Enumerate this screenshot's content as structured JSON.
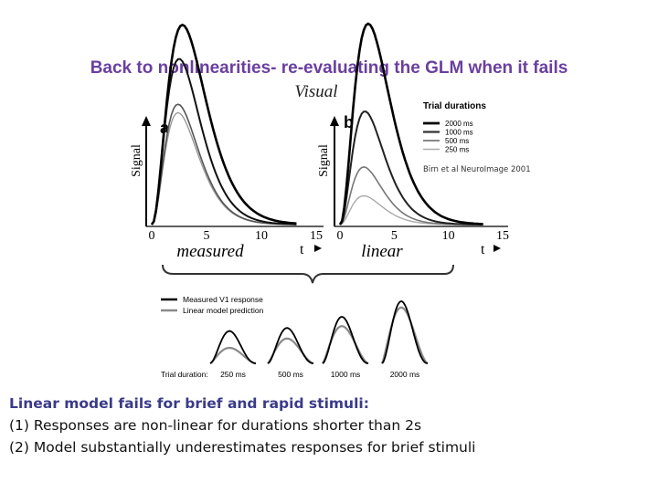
{
  "colors": {
    "title": "#6a3fa0",
    "emphasis": "#3a3a8a",
    "curve_dark": "#000000",
    "curve_gray": "#8a8a8a"
  },
  "slide": {
    "title": "Back to nonlinearities- re-evaluating the GLM when it fails",
    "figure_label": "Visual",
    "citation": "Birn et al NeuroImage 2001",
    "body_lines": [
      "Linear model fails for brief and rapid stimuli:",
      "(1) Responses are non-linear for durations shorter than 2s",
      "(2) Model substantially underestimates responses for brief stimuli"
    ]
  },
  "chart_data": [
    {
      "type": "line",
      "panel": "a",
      "subtitle": "measured",
      "ylabel": "Signal",
      "xlabel": "t",
      "xticks": [
        0,
        5,
        10,
        15
      ],
      "xlim": [
        0,
        15
      ],
      "ylim": [
        0,
        1
      ],
      "series": [
        {
          "name": "2000 ms",
          "color": "#000000",
          "width": 2.6,
          "peak": 0.96,
          "tpeak": 5.8,
          "w": 2.8
        },
        {
          "name": "1000 ms",
          "color": "#111111",
          "width": 2.0,
          "peak": 0.75,
          "tpeak": 5.3,
          "w": 2.5
        },
        {
          "name": "500 ms",
          "color": "#555555",
          "width": 1.6,
          "peak": 0.57,
          "tpeak": 5.0,
          "w": 2.4
        },
        {
          "name": "250 ms",
          "color": "#999999",
          "width": 1.4,
          "peak": 0.53,
          "tpeak": 5.0,
          "w": 2.4
        }
      ]
    },
    {
      "type": "line",
      "panel": "b",
      "subtitle": "linear",
      "ylabel": "Signal",
      "xlabel": "t",
      "xticks": [
        0,
        5,
        10,
        15
      ],
      "xlim": [
        0,
        15
      ],
      "ylim": [
        0,
        1
      ],
      "legend_title": "Trial durations",
      "legend_position": "top-right",
      "series": [
        {
          "name": "2000 ms",
          "color": "#000000",
          "width": 2.6,
          "peak": 0.96,
          "tpeak": 5.8,
          "w": 2.6
        },
        {
          "name": "1000 ms",
          "color": "#222222",
          "width": 2.0,
          "peak": 0.52,
          "tpeak": 5.2,
          "w": 2.3
        },
        {
          "name": "500 ms",
          "color": "#777777",
          "width": 1.6,
          "peak": 0.26,
          "tpeak": 5.0,
          "w": 2.2
        },
        {
          "name": "250 ms",
          "color": "#aaaaaa",
          "width": 1.4,
          "peak": 0.13,
          "tpeak": 5.0,
          "w": 2.2
        }
      ]
    },
    {
      "type": "line",
      "panel": "inset",
      "legend": [
        "Measured V1 response",
        "Linear model prediction"
      ],
      "xlabel": "Trial duration:",
      "categories": [
        "250 ms",
        "500 ms",
        "1000 ms",
        "2000 ms"
      ],
      "measured_peaks": [
        0.52,
        0.57,
        0.75,
        1.0
      ],
      "linear_peaks": [
        0.25,
        0.4,
        0.6,
        0.9
      ]
    }
  ]
}
